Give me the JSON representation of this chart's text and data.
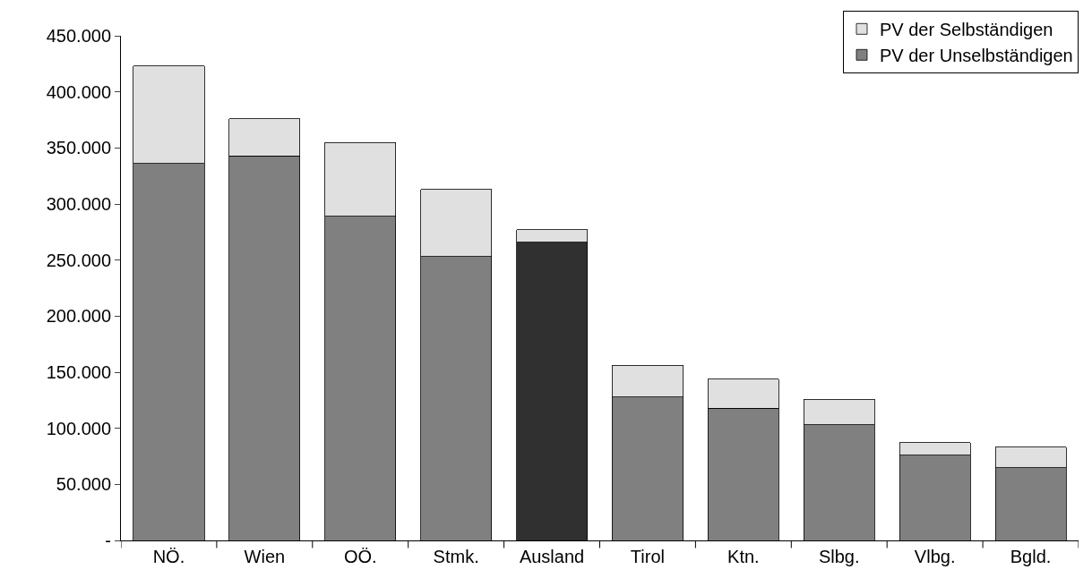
{
  "chart_data": {
    "type": "bar",
    "stacked": true,
    "categories": [
      "NÖ.",
      "Wien",
      "OÖ.",
      "Stmk.",
      "Ausland",
      "Tirol",
      "Ktn.",
      "Slbg.",
      "Vlbg.",
      "Bgld."
    ],
    "series": [
      {
        "name": "PV der Unselbständigen",
        "colors": [
          "#808080",
          "#808080",
          "#808080",
          "#808080",
          "#303030",
          "#808080",
          "#808080",
          "#808080",
          "#808080",
          "#808080"
        ],
        "values": [
          336000,
          343000,
          289000,
          253000,
          266000,
          128000,
          118000,
          103000,
          76000,
          65000
        ]
      },
      {
        "name": "PV der Selbständigen",
        "color": "#e0e0e0",
        "values": [
          87000,
          33000,
          66000,
          60000,
          11000,
          28000,
          26000,
          23000,
          11000,
          18000
        ]
      }
    ],
    "ylim": [
      0,
      450000
    ],
    "yticks": [
      {
        "value": 0,
        "label": "-"
      },
      {
        "value": 50000,
        "label": "50.000"
      },
      {
        "value": 100000,
        "label": "100.000"
      },
      {
        "value": 150000,
        "label": "150.000"
      },
      {
        "value": 200000,
        "label": "200.000"
      },
      {
        "value": 250000,
        "label": "250.000"
      },
      {
        "value": 300000,
        "label": "300.000"
      },
      {
        "value": 350000,
        "label": "350.000"
      },
      {
        "value": 400000,
        "label": "400.000"
      },
      {
        "value": 450000,
        "label": "450.000"
      }
    ],
    "legend": "top right"
  }
}
